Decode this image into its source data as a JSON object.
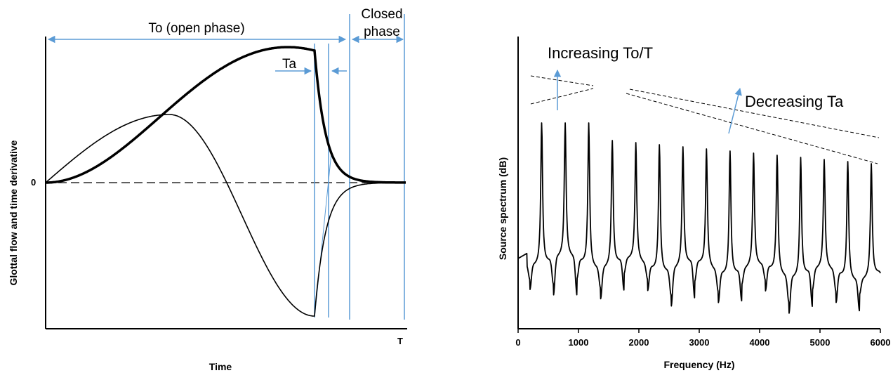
{
  "chart_data": [
    {
      "type": "line",
      "xlabel": "Time",
      "ylabel": "Glottal flow and time derivative",
      "y_tick_labels": [
        "0"
      ],
      "x_tick_labels": [
        "T"
      ],
      "series": [
        {
          "style": "thick"
        },
        {
          "style": "thin"
        }
      ],
      "annotations": {
        "open_phase": "To (open phase)",
        "closed_phase_line1": "Closed",
        "closed_phase_line2": "phase",
        "return_phase": "Ta"
      }
    },
    {
      "type": "line",
      "xlabel": "Frequency (Hz)",
      "ylabel": "Source spectrum (dB)",
      "xlim": [
        0,
        6000
      ],
      "x_ticks": [
        0,
        1000,
        2000,
        3000,
        4000,
        5000,
        6000
      ],
      "x_tick_labels": [
        "0",
        "1000",
        "2000",
        "3000",
        "4000",
        "5000",
        "6000"
      ],
      "fundamental_hz": 390,
      "annotations": {
        "to_label": "Increasing To/T",
        "ta_label": "Decreasing Ta"
      }
    }
  ],
  "colors": {
    "accent": "#5b9bd5",
    "line": "#000000"
  }
}
